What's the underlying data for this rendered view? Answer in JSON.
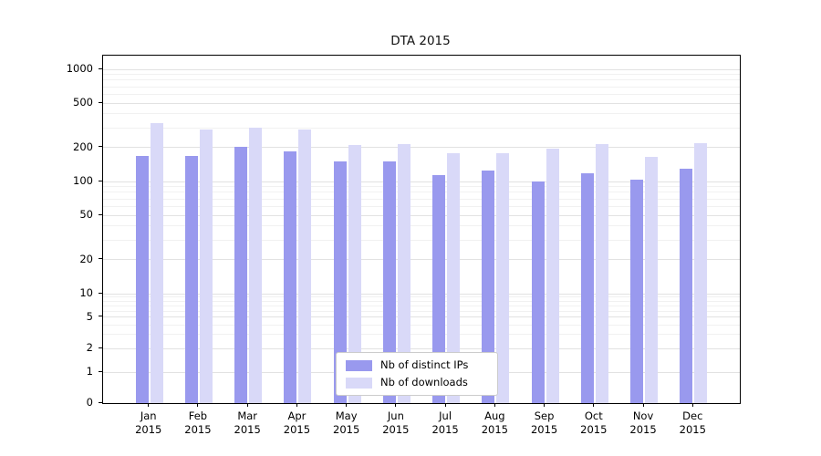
{
  "chart_data": {
    "type": "bar",
    "title": "DTA 2015",
    "categories": [
      "Jan 2015",
      "Feb 2015",
      "Mar 2015",
      "Apr 2015",
      "May 2015",
      "Jun 2015",
      "Jul 2015",
      "Aug 2015",
      "Sep 2015",
      "Oct 2015",
      "Nov 2015",
      "Dec 2015"
    ],
    "series": [
      {
        "name": "Nb of distinct IPs",
        "color": "#9999ee",
        "values": [
          170,
          170,
          205,
          185,
          150,
          150,
          113,
          125,
          100,
          118,
          103,
          130
        ]
      },
      {
        "name": "Nb of downloads",
        "color": "#d9d9f8",
        "values": [
          330,
          290,
          300,
          290,
          210,
          215,
          180,
          180,
          195,
          215,
          165,
          220
        ]
      }
    ],
    "xlabel": "",
    "ylabel": "",
    "yscale": "symlog",
    "yticks": [
      0,
      1,
      2,
      5,
      10,
      20,
      50,
      100,
      200,
      500,
      1000
    ],
    "ylim": [
      0,
      1400
    ],
    "grid": true,
    "legend_position": "lower center",
    "colors": {
      "major_grid": "#e2e2e2",
      "minor_grid": "#f1f1f1",
      "axis": "#000000",
      "background": "#ffffff"
    }
  }
}
